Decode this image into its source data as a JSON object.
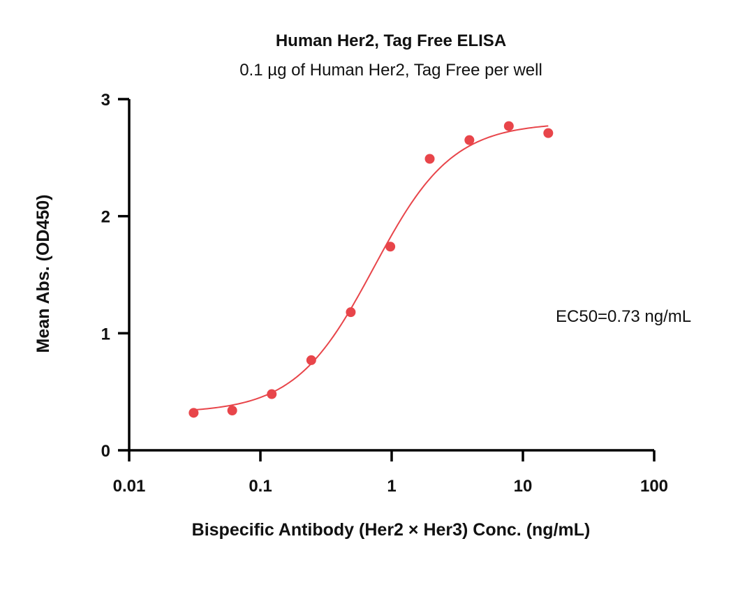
{
  "chart_data": {
    "type": "scatter",
    "title": "Human Her2, Tag Free ELISA",
    "subtitle": "0.1 µg of Human Her2, Tag Free per well",
    "xlabel": "Bispecific Antibody (Her2 × Her3) Conc. (ng/mL)",
    "ylabel": "Mean Abs. (OD450)",
    "x_scale": "log",
    "xlim": [
      0.01,
      100
    ],
    "ylim": [
      0,
      3
    ],
    "x_ticks": [
      0.01,
      0.1,
      1,
      10,
      100
    ],
    "x_tick_labels": [
      "0.01",
      "0.1",
      "1",
      "10",
      "100"
    ],
    "y_ticks": [
      0,
      1,
      2,
      3
    ],
    "y_tick_labels": [
      "0",
      "1",
      "2",
      "3"
    ],
    "grid": false,
    "legend": "none",
    "series": [
      {
        "x": [
          0.031,
          0.061,
          0.122,
          0.244,
          0.488,
          0.977,
          1.95,
          3.91,
          7.81,
          15.6
        ],
        "y": [
          0.32,
          0.34,
          0.48,
          0.77,
          1.18,
          1.74,
          2.49,
          2.65,
          2.77,
          2.71
        ],
        "color": "#e8454a"
      }
    ],
    "fit_curve": {
      "type": "4PL",
      "bottom": 0.32,
      "top": 2.8,
      "ec50": 0.73,
      "color": "#e8454a"
    },
    "annotations": [
      "EC50=0.73 ng/mL"
    ]
  }
}
